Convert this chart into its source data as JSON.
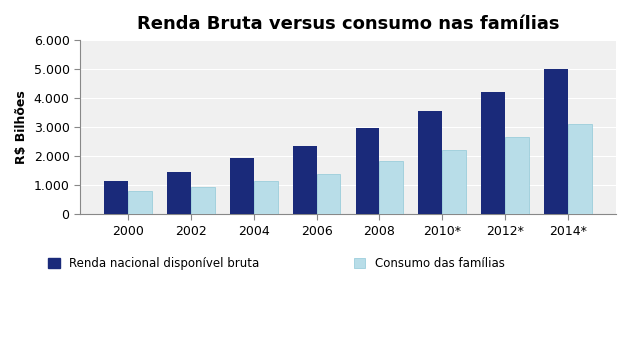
{
  "title": "Renda Bruta versus consumo nas famílias",
  "ylabel": "R$ Bilhões",
  "categories": [
    "2000",
    "2002",
    "2004",
    "2006",
    "2008",
    "2010*",
    "2012*",
    "2014*"
  ],
  "renda_bruta": [
    1150,
    1450,
    1950,
    2350,
    2980,
    3550,
    4200,
    5020
  ],
  "consumo_familias": [
    800,
    950,
    1150,
    1400,
    1850,
    2200,
    2650,
    3100
  ],
  "color_renda": "#1a2a7a",
  "color_consumo": "#b8dde8",
  "ylim": [
    0,
    6000
  ],
  "yticks": [
    0,
    1000,
    2000,
    3000,
    4000,
    5000,
    6000
  ],
  "ytick_labels": [
    "0",
    "1.000",
    "2.000",
    "3.000",
    "4.000",
    "5.000",
    "6.000"
  ],
  "legend_renda": "Renda nacional disponível bruta",
  "legend_consumo": "Consumo das famílias",
  "background_color": "#ffffff",
  "plot_bg_color": "#f0f0f0",
  "title_fontsize": 13,
  "bar_width": 0.38
}
